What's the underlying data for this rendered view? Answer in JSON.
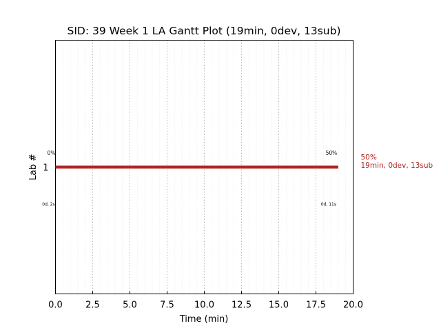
{
  "chart_data": {
    "type": "gantt",
    "title": "SID: 39 Week 1 LA Gantt Plot (19min, 0dev, 13sub)",
    "xlabel": "Time (min)",
    "ylabel": "Lab #",
    "xlim": [
      0,
      20
    ],
    "x_ticks": [
      "0.0",
      "2.5",
      "5.0",
      "7.5",
      "10.0",
      "12.5",
      "15.0",
      "17.5",
      "20.0"
    ],
    "grid": "vertical dotted",
    "rows": [
      {
        "lab": "1",
        "start": 0,
        "end": 19,
        "color": "#b22222",
        "start_pct_label": "0%",
        "end_pct_label": "50%",
        "start_time_label": "0d, 2s",
        "end_time_label": "0d, 11s",
        "side_label_pct": "50%",
        "side_label_summary": "19min, 0dev, 13sub"
      }
    ]
  }
}
